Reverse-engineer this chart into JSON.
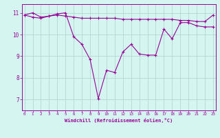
{
  "line_temp_x": [
    0,
    1,
    2,
    3,
    4,
    5,
    6,
    7,
    8,
    9,
    10,
    11,
    12,
    13,
    14,
    15,
    16,
    17,
    18,
    19,
    20,
    21,
    22,
    23
  ],
  "line_temp_y": [
    10.9,
    10.8,
    10.75,
    10.85,
    10.9,
    10.85,
    10.8,
    10.75,
    10.75,
    10.75,
    10.75,
    10.75,
    10.7,
    10.7,
    10.7,
    10.7,
    10.7,
    10.7,
    10.7,
    10.65,
    10.65,
    10.6,
    10.6,
    10.9
  ],
  "line_wind_x": [
    0,
    1,
    2,
    3,
    4,
    5,
    6,
    7,
    8,
    9,
    10,
    11,
    12,
    13,
    14,
    15,
    16,
    17,
    18,
    19,
    20,
    21,
    22,
    23
  ],
  "line_wind_y": [
    10.9,
    11.0,
    10.8,
    10.85,
    10.95,
    11.0,
    9.9,
    9.55,
    8.85,
    7.05,
    8.35,
    8.25,
    9.2,
    9.55,
    9.1,
    9.05,
    9.05,
    10.25,
    9.8,
    10.55,
    10.55,
    10.4,
    10.35,
    10.35
  ],
  "line_color": "#990099",
  "bg_color": "#d5f5f0",
  "grid_color": "#b0d8d0",
  "xlabel": "Windchill (Refroidissement éolien,°C)",
  "yticks": [
    7,
    8,
    9,
    10,
    11
  ],
  "xticks": [
    0,
    1,
    2,
    3,
    4,
    5,
    6,
    7,
    8,
    9,
    10,
    11,
    12,
    13,
    14,
    15,
    16,
    17,
    18,
    19,
    20,
    21,
    22,
    23
  ],
  "ylim": [
    6.5,
    11.4
  ],
  "xlim": [
    -0.3,
    23.3
  ]
}
